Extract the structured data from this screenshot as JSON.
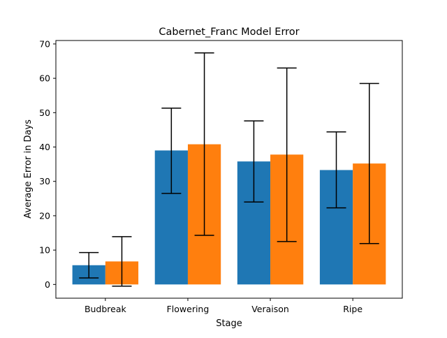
{
  "chart_data": {
    "type": "bar",
    "title": "Cabernet_Franc Model Error",
    "xlabel": "Stage",
    "ylabel": "Average Error in Days",
    "categories": [
      "Budbreak",
      "Flowering",
      "Veraison",
      "Ripe"
    ],
    "ylim": [
      -4,
      71
    ],
    "yticks": [
      0,
      10,
      20,
      30,
      40,
      50,
      60,
      70
    ],
    "grid": false,
    "series": [
      {
        "color": "#1f77b4",
        "values": [
          5.6,
          39.0,
          35.8,
          33.3
        ],
        "error_low": [
          1.9,
          26.5,
          24.0,
          22.3
        ],
        "error_high": [
          9.3,
          51.3,
          47.6,
          44.4
        ]
      },
      {
        "color": "#ff7f0e",
        "values": [
          6.7,
          40.8,
          37.8,
          35.2
        ],
        "error_low": [
          -0.5,
          14.3,
          12.5,
          11.9
        ],
        "error_high": [
          13.9,
          67.4,
          63.0,
          58.5
        ]
      }
    ]
  }
}
